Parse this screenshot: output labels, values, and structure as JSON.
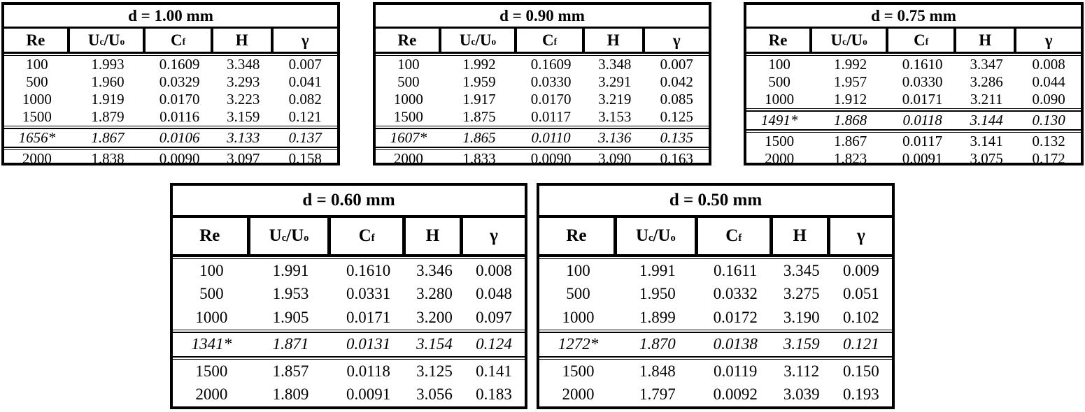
{
  "colors": {
    "background": "#ffffff",
    "text": "#000000",
    "border": "#000000"
  },
  "columns": [
    {
      "key": "re",
      "label": [
        {
          "text": "Re"
        }
      ]
    },
    {
      "key": "uc-uo",
      "label": [
        {
          "text": "U"
        },
        {
          "sub": "c"
        },
        {
          "text": "/U"
        },
        {
          "sub": "o"
        }
      ]
    },
    {
      "key": "cf",
      "label": [
        {
          "text": "C"
        },
        {
          "sub": "f"
        }
      ]
    },
    {
      "key": "h",
      "label": [
        {
          "text": "H"
        }
      ]
    },
    {
      "key": "gamma",
      "label": [
        {
          "text": "γ"
        }
      ]
    }
  ],
  "tables": [
    {
      "title": "d = 1.00 mm",
      "rows": [
        {
          "cells": [
            "100",
            "1.993",
            "0.1609",
            "3.348",
            "0.007"
          ],
          "critical": false
        },
        {
          "cells": [
            "500",
            "1.960",
            "0.0329",
            "3.293",
            "0.041"
          ],
          "critical": false
        },
        {
          "cells": [
            "1000",
            "1.919",
            "0.0170",
            "3.223",
            "0.082"
          ],
          "critical": false
        },
        {
          "cells": [
            "1500",
            "1.879",
            "0.0116",
            "3.159",
            "0.121"
          ],
          "critical": false
        },
        {
          "cells": [
            "1656*",
            "1.867",
            "0.0106",
            "3.133",
            "0.137"
          ],
          "critical": true
        },
        {
          "cells": [
            "2000",
            "1.838",
            "0.0090",
            "3.097",
            "0.158"
          ],
          "critical": false
        }
      ]
    },
    {
      "title": "d = 0.90 mm",
      "rows": [
        {
          "cells": [
            "100",
            "1.992",
            "0.1609",
            "3.348",
            "0.007"
          ],
          "critical": false
        },
        {
          "cells": [
            "500",
            "1.959",
            "0.0330",
            "3.291",
            "0.042"
          ],
          "critical": false
        },
        {
          "cells": [
            "1000",
            "1.917",
            "0.0170",
            "3.219",
            "0.085"
          ],
          "critical": false
        },
        {
          "cells": [
            "1500",
            "1.875",
            "0.0117",
            "3.153",
            "0.125"
          ],
          "critical": false
        },
        {
          "cells": [
            "1607*",
            "1.865",
            "0.0110",
            "3.136",
            "0.135"
          ],
          "critical": true
        },
        {
          "cells": [
            "2000",
            "1.833",
            "0.0090",
            "3.090",
            "0.163"
          ],
          "critical": false
        }
      ]
    },
    {
      "title": "d = 0.75 mm",
      "rows": [
        {
          "cells": [
            "100",
            "1.992",
            "0.1610",
            "3.347",
            "0.008"
          ],
          "critical": false
        },
        {
          "cells": [
            "500",
            "1.957",
            "0.0330",
            "3.286",
            "0.044"
          ],
          "critical": false
        },
        {
          "cells": [
            "1000",
            "1.912",
            "0.0171",
            "3.211",
            "0.090"
          ],
          "critical": false
        },
        {
          "cells": [
            "1491*",
            "1.868",
            "0.0118",
            "3.144",
            "0.130"
          ],
          "critical": true
        },
        {
          "cells": [
            "1500",
            "1.867",
            "0.0117",
            "3.141",
            "0.132"
          ],
          "critical": false
        },
        {
          "cells": [
            "2000",
            "1.823",
            "0.0091",
            "3.075",
            "0.172"
          ],
          "critical": false
        }
      ]
    },
    {
      "title": "d = 0.60 mm",
      "rows": [
        {
          "cells": [
            "100",
            "1.991",
            "0.1610",
            "3.346",
            "0.008"
          ],
          "critical": false
        },
        {
          "cells": [
            "500",
            "1.953",
            "0.0331",
            "3.280",
            "0.048"
          ],
          "critical": false
        },
        {
          "cells": [
            "1000",
            "1.905",
            "0.0171",
            "3.200",
            "0.097"
          ],
          "critical": false
        },
        {
          "cells": [
            "1341*",
            "1.871",
            "0.0131",
            "3.154",
            "0.124"
          ],
          "critical": true
        },
        {
          "cells": [
            "1500",
            "1.857",
            "0.0118",
            "3.125",
            "0.141"
          ],
          "critical": false
        },
        {
          "cells": [
            "2000",
            "1.809",
            "0.0091",
            "3.056",
            "0.183"
          ],
          "critical": false
        }
      ]
    },
    {
      "title": "d = 0.50 mm",
      "rows": [
        {
          "cells": [
            "100",
            "1.991",
            "0.1611",
            "3.345",
            "0.009"
          ],
          "critical": false
        },
        {
          "cells": [
            "500",
            "1.950",
            "0.0332",
            "3.275",
            "0.051"
          ],
          "critical": false
        },
        {
          "cells": [
            "1000",
            "1.899",
            "0.0172",
            "3.190",
            "0.102"
          ],
          "critical": false
        },
        {
          "cells": [
            "1272*",
            "1.870",
            "0.0138",
            "3.159",
            "0.121"
          ],
          "critical": true
        },
        {
          "cells": [
            "1500",
            "1.848",
            "0.0119",
            "3.112",
            "0.150"
          ],
          "critical": false
        },
        {
          "cells": [
            "2000",
            "1.797",
            "0.0092",
            "3.039",
            "0.193"
          ],
          "critical": false
        }
      ]
    }
  ]
}
